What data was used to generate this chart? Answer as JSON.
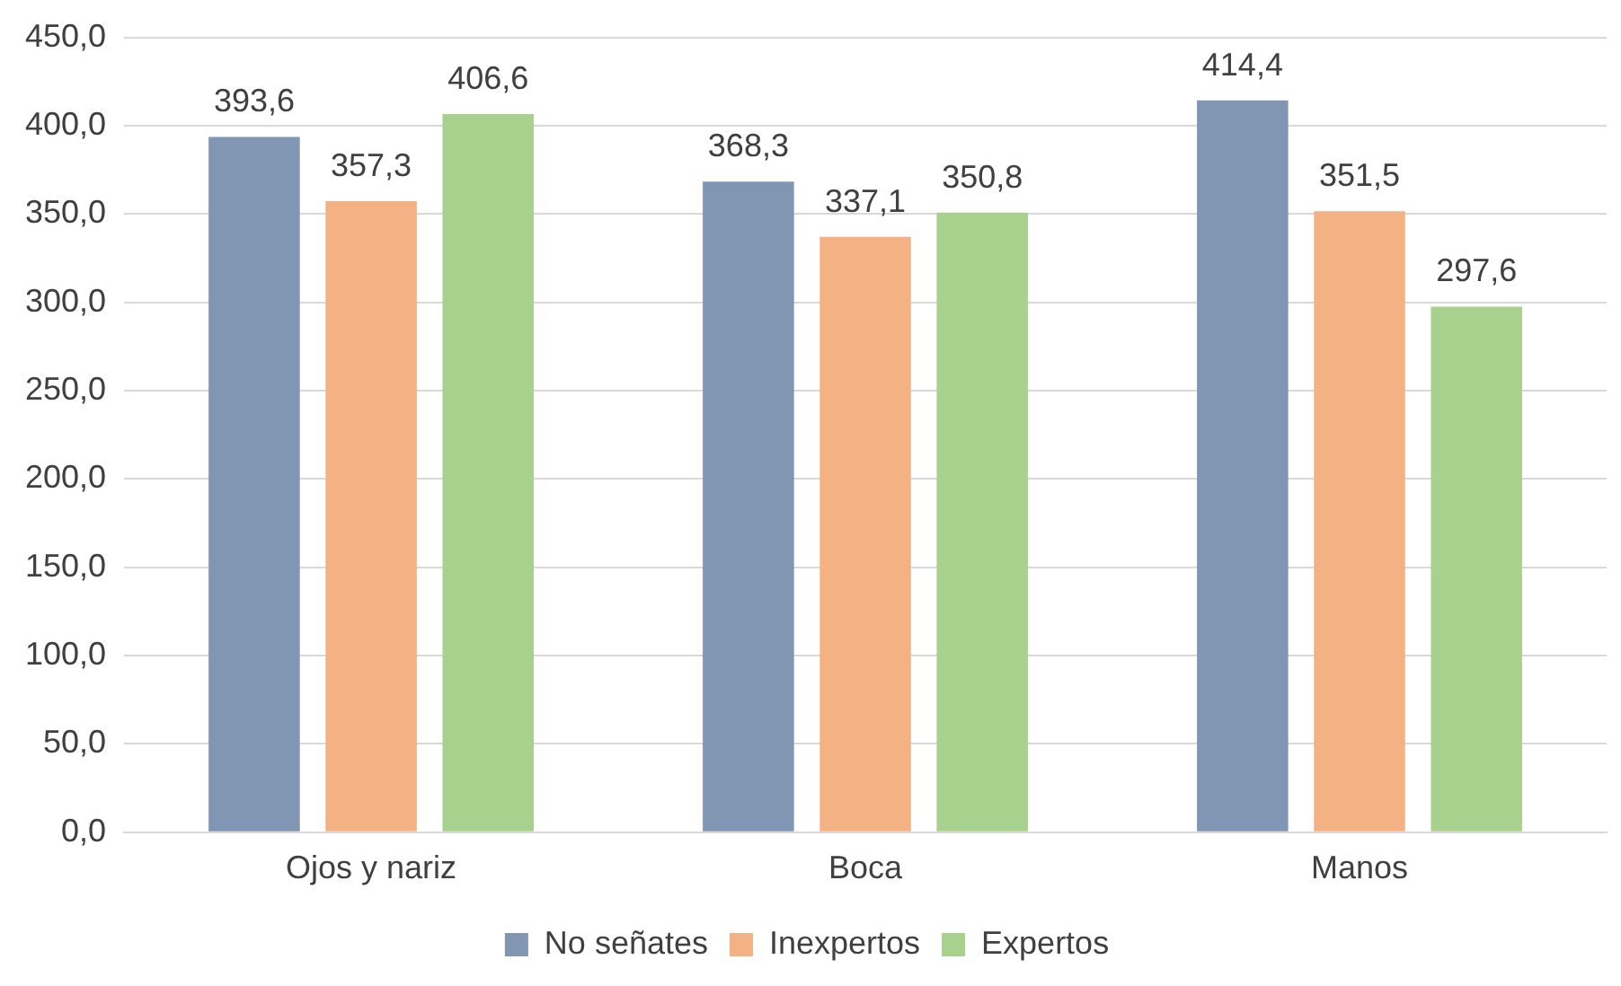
{
  "chart_data": {
    "type": "bar",
    "categories": [
      "Ojos y nariz",
      "Boca",
      "Manos"
    ],
    "series": [
      {
        "name": "No señates",
        "color": "#8096b2",
        "values": [
          393.6,
          368.3,
          414.4
        ],
        "value_labels": [
          "393,6",
          "368,3",
          "414,4"
        ]
      },
      {
        "name": "Inexpertos",
        "color": "#f4b183",
        "values": [
          357.3,
          337.1,
          351.5
        ],
        "value_labels": [
          "357,3",
          "337,1",
          "351,5"
        ]
      },
      {
        "name": "Expertos",
        "color": "#a9d18e",
        "values": [
          406.6,
          350.8,
          297.6
        ],
        "value_labels": [
          "406,6",
          "350,8",
          "297,6"
        ]
      }
    ],
    "ylim": [
      0,
      450
    ],
    "yticks": [
      {
        "value": 0,
        "label": "0,0"
      },
      {
        "value": 50,
        "label": "50,0"
      },
      {
        "value": 100,
        "label": "100,0"
      },
      {
        "value": 150,
        "label": "150,0"
      },
      {
        "value": 200,
        "label": "200,0"
      },
      {
        "value": 250,
        "label": "250,0"
      },
      {
        "value": 300,
        "label": "300,0"
      },
      {
        "value": 350,
        "label": "350,0"
      },
      {
        "value": 400,
        "label": "400,0"
      },
      {
        "value": 450,
        "label": "450,0"
      }
    ],
    "grid": "y",
    "legend": "bottom"
  }
}
